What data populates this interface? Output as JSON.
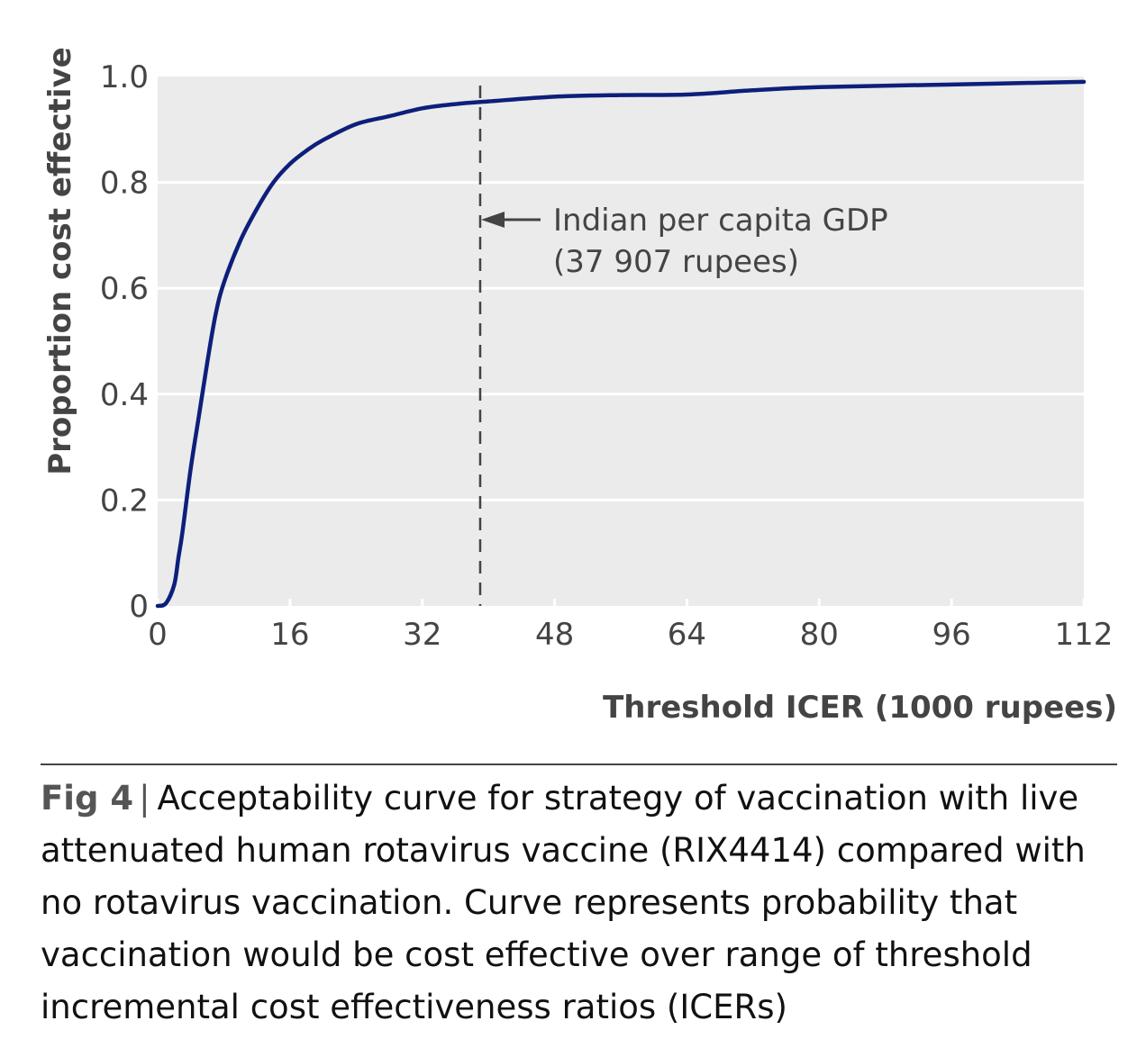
{
  "chart_data": {
    "type": "line",
    "title": "",
    "xlabel": "Threshold ICER (1000 rupees)",
    "ylabel": "Proportion cost effective",
    "xlim": [
      0,
      112
    ],
    "ylim": [
      0,
      1.0
    ],
    "x_ticks": [
      0,
      16,
      32,
      48,
      64,
      80,
      96,
      112
    ],
    "x_tick_labels": [
      "0",
      "16",
      "32",
      "48",
      "64",
      "80",
      "96",
      "112"
    ],
    "y_ticks": [
      0,
      0.2,
      0.4,
      0.6,
      0.8,
      1.0
    ],
    "y_tick_labels": [
      "0",
      "0.2",
      "0.4",
      "0.6",
      "0.8",
      "1.0"
    ],
    "grid": "horizontal",
    "series": [
      {
        "name": "Acceptability curve",
        "color": "#0d1f7a",
        "x": [
          0,
          1,
          2,
          2.5,
          3,
          4,
          5,
          6,
          7,
          8,
          10,
          12,
          14,
          16,
          18,
          20,
          24,
          28,
          32,
          36,
          40,
          48,
          56,
          64,
          72,
          80,
          96,
          112
        ],
        "y": [
          0,
          0.005,
          0.04,
          0.09,
          0.14,
          0.26,
          0.36,
          0.46,
          0.55,
          0.61,
          0.69,
          0.75,
          0.8,
          0.835,
          0.86,
          0.88,
          0.91,
          0.925,
          0.94,
          0.948,
          0.953,
          0.962,
          0.965,
          0.966,
          0.974,
          0.98,
          0.985,
          0.99
        ]
      }
    ],
    "reference_line": {
      "x": 39,
      "style": "dashed",
      "color": "#444444"
    },
    "annotation": {
      "line1": "Indian per capita GDP",
      "line2": "(37 907 rupees)"
    },
    "plot_background": "#ebebeb"
  },
  "caption": {
    "label": "Fig 4",
    "separator": "|",
    "text": "Acceptability curve for strategy of vaccination with live attenuated human rotavirus vaccine (RIX4414) compared with no rotavirus vaccination. Curve represents probability that vaccination would be cost effective over range of threshold incremental cost effectiveness ratios (ICERs)"
  }
}
